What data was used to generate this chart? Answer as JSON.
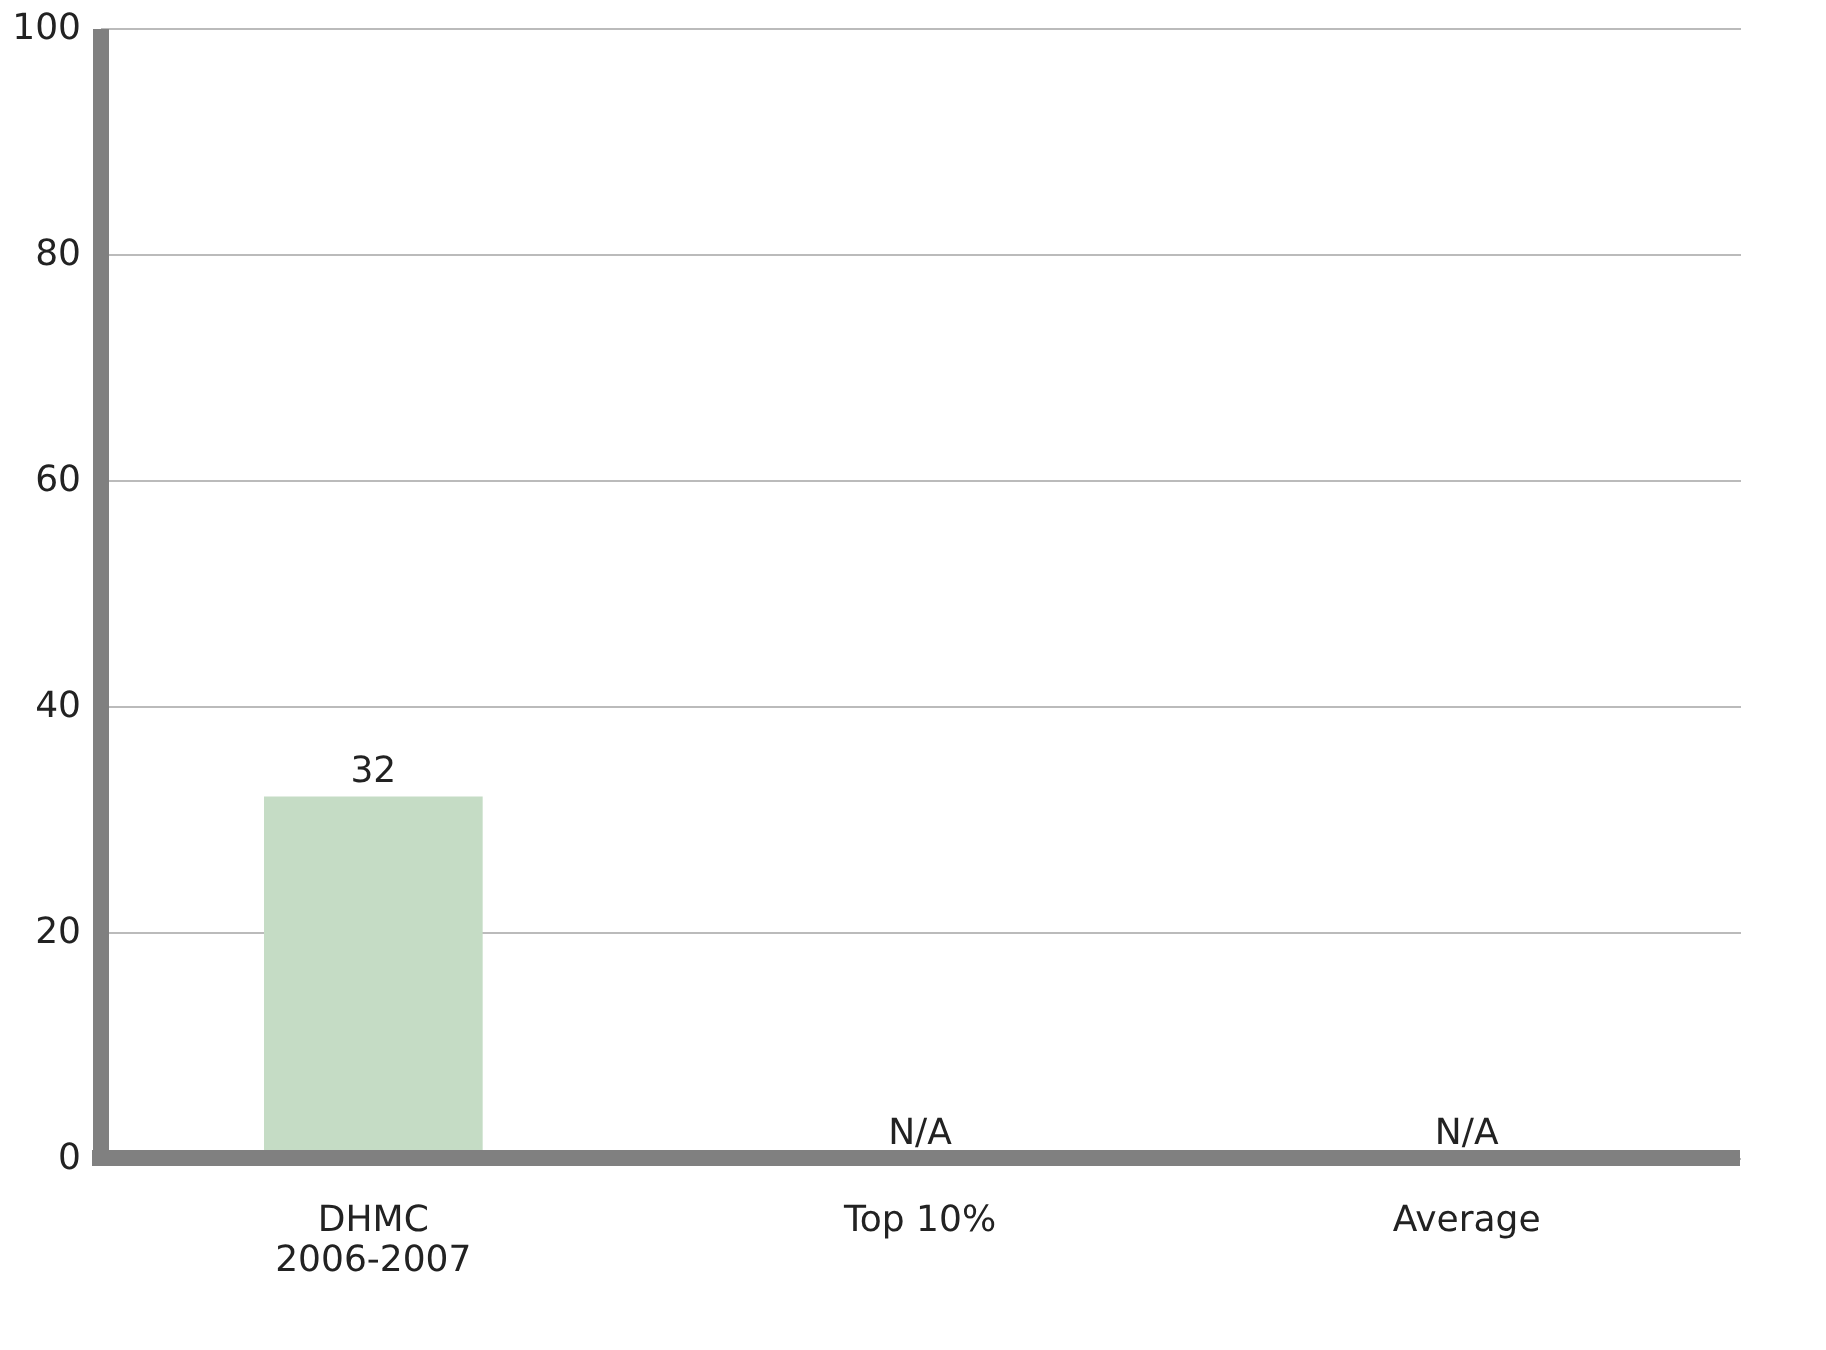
{
  "chart_data": {
    "type": "bar",
    "categories": [
      "DHMC\n2006-2007",
      "Top 10%",
      "Average"
    ],
    "values": [
      32,
      null,
      null
    ],
    "value_labels": [
      "32",
      "N/A",
      "N/A"
    ],
    "colors": [
      "#c5dcc5",
      "#c5dcc5",
      "#c5dcc5"
    ],
    "ylim": [
      0,
      100
    ],
    "yticks": [
      0,
      20,
      40,
      60,
      80,
      100
    ],
    "grid": "y"
  }
}
